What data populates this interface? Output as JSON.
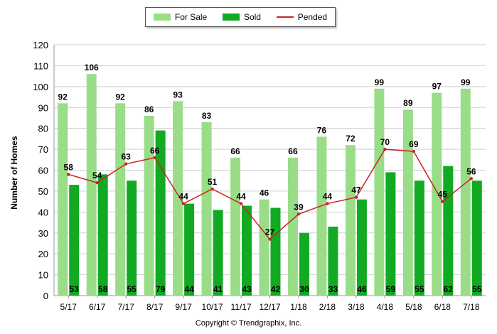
{
  "chart_data": {
    "type": "bar",
    "categories": [
      "5/17",
      "6/17",
      "7/17",
      "8/17",
      "9/17",
      "10/17",
      "11/17",
      "12/17",
      "1/18",
      "2/18",
      "3/18",
      "4/18",
      "5/18",
      "6/18",
      "7/18"
    ],
    "series": [
      {
        "name": "For Sale",
        "kind": "bar",
        "color": "#99dd88",
        "values": [
          92,
          106,
          92,
          86,
          93,
          83,
          66,
          46,
          66,
          76,
          72,
          99,
          89,
          97,
          99
        ]
      },
      {
        "name": "Sold",
        "kind": "bar",
        "color": "#11aa22",
        "values": [
          53,
          58,
          55,
          79,
          44,
          41,
          43,
          42,
          30,
          33,
          46,
          59,
          55,
          62,
          55
        ]
      },
      {
        "name": "Pended",
        "kind": "line",
        "color": "#cc2222",
        "values": [
          58,
          54,
          63,
          66,
          44,
          51,
          44,
          27,
          39,
          44,
          47,
          70,
          69,
          45,
          56
        ]
      }
    ],
    "ylabel": "Number of Homes",
    "xlabel": "",
    "ylim": [
      0,
      120
    ],
    "yticks": [
      0,
      10,
      20,
      30,
      40,
      50,
      60,
      70,
      80,
      90,
      100,
      110,
      120
    ],
    "grid": true,
    "legend_position": "top-center"
  },
  "legend": {
    "for_sale": "For Sale",
    "sold": "Sold",
    "pended": "Pended"
  },
  "footer": {
    "copyright": "Copyright © Trendgraphix, Inc."
  }
}
